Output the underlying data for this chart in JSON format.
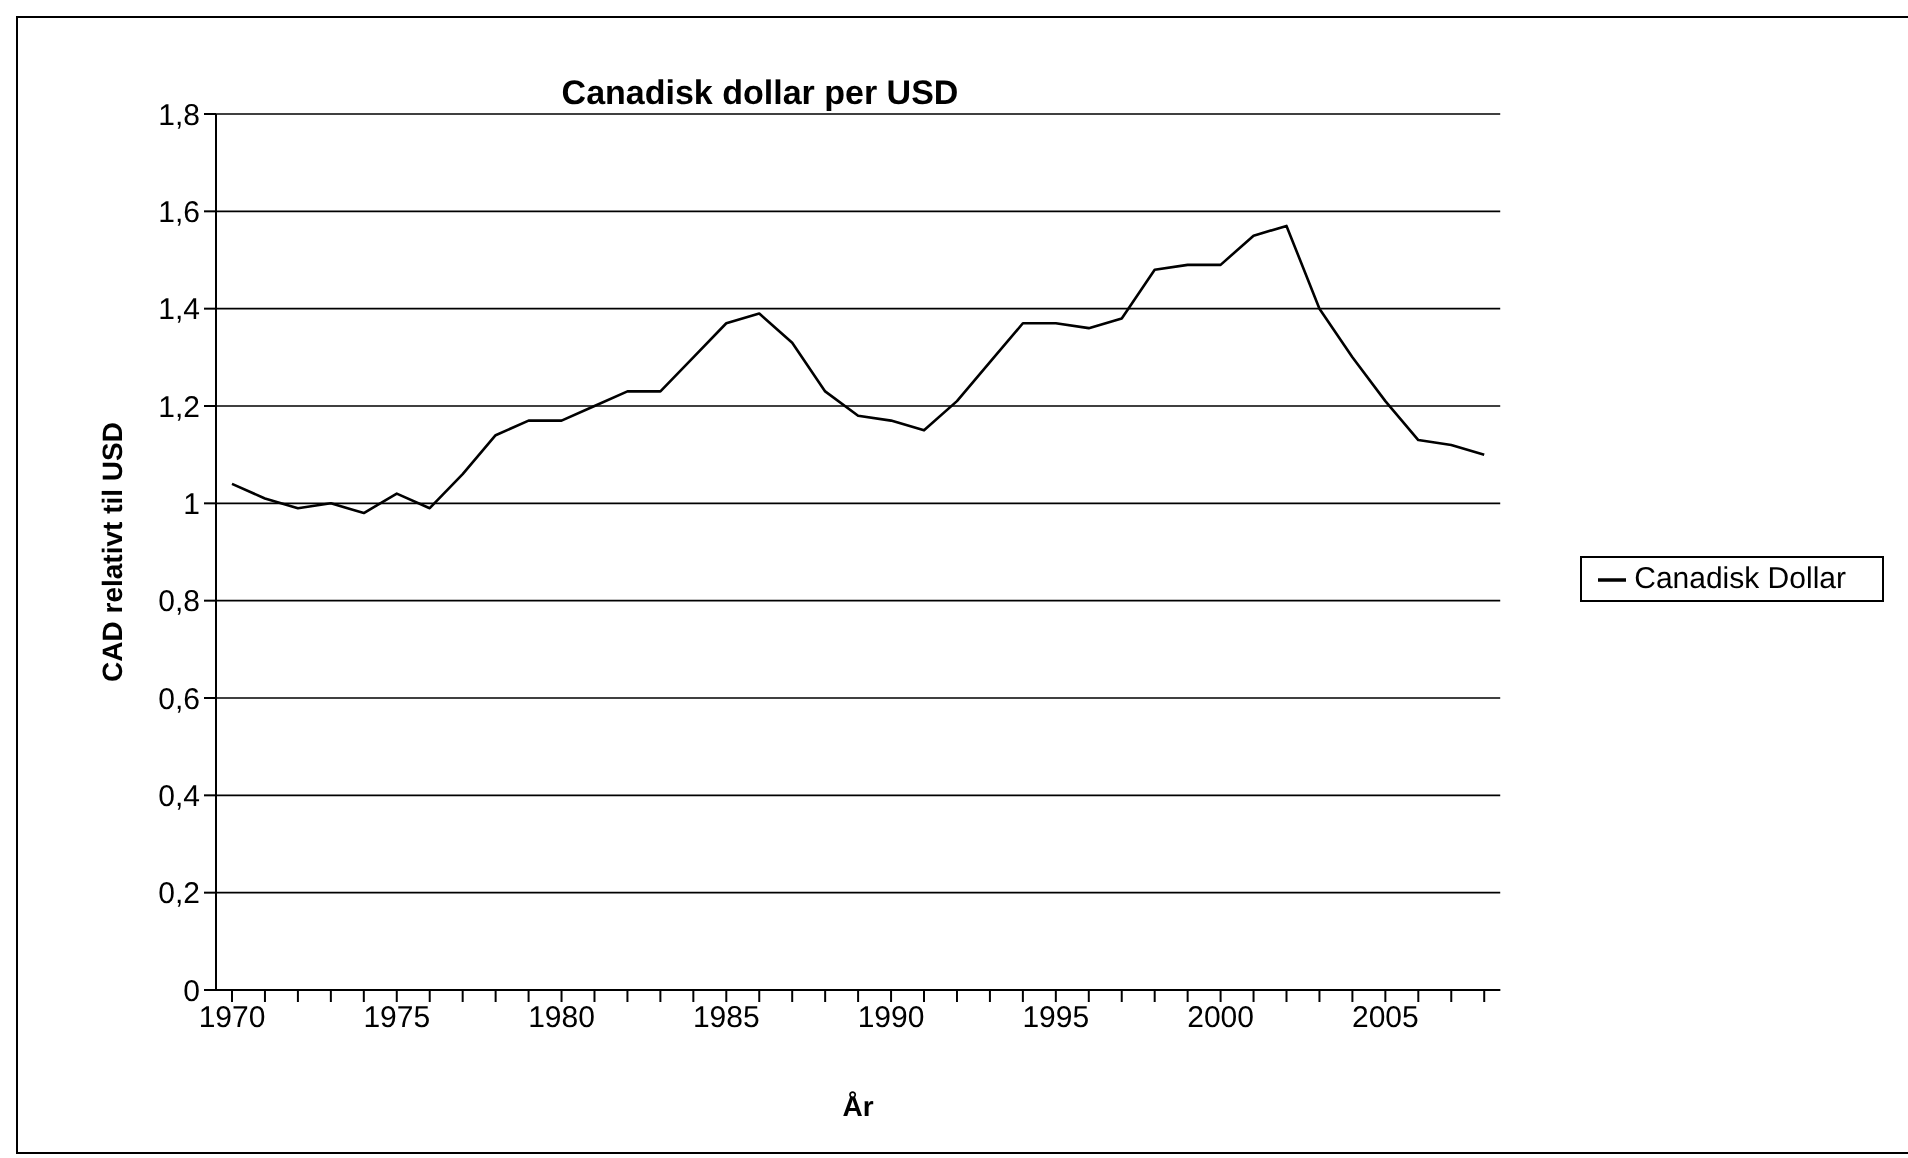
{
  "chart_data": {
    "type": "line",
    "title": "Canadisk dollar per USD",
    "xlabel": "År",
    "ylabel": "CAD relativt til USD",
    "categories": [
      "1970",
      null,
      null,
      null,
      null,
      "1975",
      null,
      null,
      null,
      null,
      "1980",
      null,
      null,
      null,
      null,
      "1985",
      null,
      null,
      null,
      null,
      "1990",
      null,
      null,
      null,
      null,
      "1995",
      null,
      null,
      null,
      null,
      "2000",
      null,
      null,
      null,
      null,
      "2005",
      null,
      null,
      null
    ],
    "series": [
      {
        "name": "Canadisk Dollar",
        "color": "#000000",
        "values": [
          1.04,
          1.01,
          0.99,
          1.0,
          0.98,
          1.02,
          0.99,
          1.06,
          1.14,
          1.17,
          1.17,
          1.2,
          1.23,
          1.23,
          1.3,
          1.37,
          1.39,
          1.33,
          1.23,
          1.18,
          1.17,
          1.15,
          1.21,
          1.29,
          1.37,
          1.37,
          1.36,
          1.38,
          1.48,
          1.49,
          1.49,
          1.55,
          1.57,
          1.4,
          1.3,
          1.21,
          1.13,
          1.12,
          1.1
        ]
      }
    ],
    "ylim": [
      0,
      1.8
    ],
    "yticks": [
      0,
      {
        "value": 0.2,
        "label": "0,2"
      },
      {
        "value": 0.4,
        "label": "0,4"
      },
      {
        "value": 0.6,
        "label": "0,6"
      },
      {
        "value": 0.8,
        "label": "0,8"
      },
      1,
      {
        "value": 1.2,
        "label": "1,2"
      },
      {
        "value": 1.4,
        "label": "1,4"
      },
      {
        "value": 1.6,
        "label": "1,6"
      },
      {
        "value": 1.8,
        "label": "1,8"
      }
    ],
    "grid": "y",
    "legend": "right",
    "marker": "none",
    "line_style": "solid"
  }
}
